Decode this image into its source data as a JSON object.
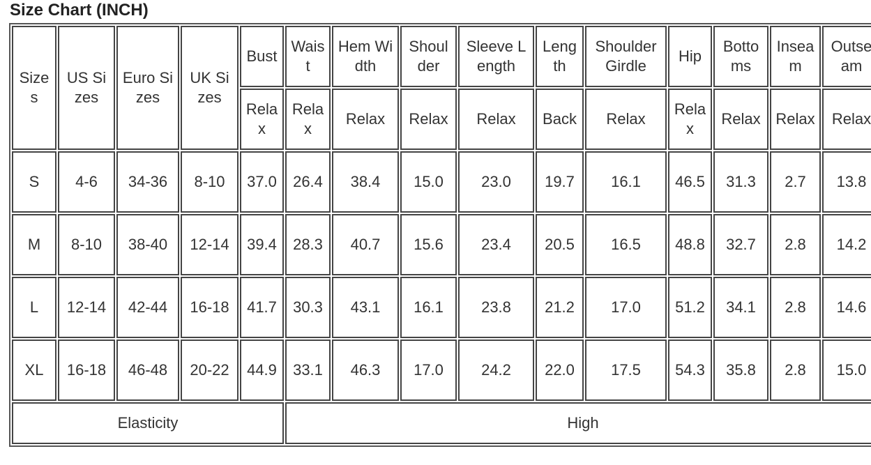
{
  "title": "Size Chart (INCH)",
  "table": {
    "header": [
      [
        "Sizes",
        "US Sizes",
        "Euro Sizes",
        "UK Sizes",
        "Bust",
        "Waist",
        "Hem Width",
        "Shoulder",
        "Sleeve Length",
        "Length",
        "Shoulder Girdle",
        "Hip",
        "Bottoms",
        "Inseam",
        "Outseam"
      ],
      [
        "Relax",
        "Relax",
        "Relax",
        "Relax",
        "Relax",
        "Back",
        "Relax",
        "Relax",
        "Relax",
        "Relax",
        "Relax"
      ]
    ],
    "rows": [
      [
        "S",
        "4-6",
        "34-36",
        "8-10",
        "37.0",
        "26.4",
        "38.4",
        "15.0",
        "23.0",
        "19.7",
        "16.1",
        "46.5",
        "31.3",
        "2.7",
        "13.8"
      ],
      [
        "M",
        "8-10",
        "38-40",
        "12-14",
        "39.4",
        "28.3",
        "40.7",
        "15.6",
        "23.4",
        "20.5",
        "16.5",
        "48.8",
        "32.7",
        "2.8",
        "14.2"
      ],
      [
        "L",
        "12-14",
        "42-44",
        "16-18",
        "41.7",
        "30.3",
        "43.1",
        "16.1",
        "23.8",
        "21.2",
        "17.0",
        "51.2",
        "34.1",
        "2.8",
        "14.6"
      ],
      [
        "XL",
        "16-18",
        "46-48",
        "20-22",
        "44.9",
        "33.1",
        "46.3",
        "17.0",
        "24.2",
        "22.0",
        "17.5",
        "54.3",
        "35.8",
        "2.8",
        "15.0"
      ]
    ],
    "footer": [
      "Elasticity",
      "High"
    ]
  }
}
